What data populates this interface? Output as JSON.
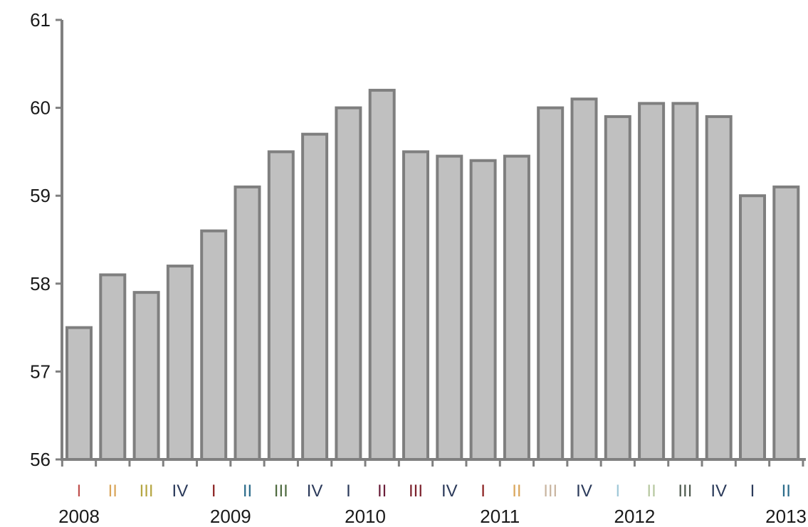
{
  "chart_data": {
    "type": "bar",
    "title": "",
    "xlabel": "",
    "ylabel": "",
    "ylim": [
      56,
      61
    ],
    "yticks": [
      "56",
      "57",
      "58",
      "59",
      "60",
      "61"
    ],
    "grid": false,
    "categories": [
      "I",
      "II",
      "III",
      "IV",
      "I",
      "II",
      "III",
      "IV",
      "I",
      "II",
      "III",
      "IV",
      "I",
      "II",
      "III",
      "IV",
      "I",
      "II",
      "III",
      "IV",
      "I",
      "II"
    ],
    "values": [
      57.5,
      58.1,
      57.9,
      58.2,
      58.6,
      59.1,
      59.5,
      59.7,
      60.0,
      60.2,
      59.5,
      59.45,
      59.4,
      59.45,
      60.0,
      60.1,
      59.9,
      60.05,
      60.05,
      59.9,
      59.0,
      59.1
    ],
    "quarter_label_colors": [
      "#c0504d",
      "#d9a55a",
      "#b5a642",
      "#2b3a5a",
      "#8a1f1f",
      "#2b6b8a",
      "#4f6b3f",
      "#2b3a5a",
      "#2b3a5a",
      "#6b1f3a",
      "#7a1f2a",
      "#2b3a5a",
      "#8a1f1f",
      "#d9a55a",
      "#c9b5a0",
      "#2b3a5a",
      "#a0c8d8",
      "#b7c8a0",
      "#4f5a4f",
      "#2b3a5a",
      "#2b3a5a",
      "#2b6b8a"
    ],
    "years": [
      {
        "label": "2008",
        "first_bar": 0,
        "last_bar": 0
      },
      {
        "label": "2009",
        "first_bar": 4,
        "last_bar": 5
      },
      {
        "label": "2010",
        "first_bar": 8,
        "last_bar": 9
      },
      {
        "label": "2011",
        "first_bar": 12,
        "last_bar": 13
      },
      {
        "label": "2012",
        "first_bar": 16,
        "last_bar": 17
      },
      {
        "label": "2013",
        "first_bar": 21,
        "last_bar": 21
      }
    ],
    "colors": {
      "bar_fill": "#c0c0c0",
      "bar_stroke": "#7f7f7f",
      "axis": "#808080"
    }
  }
}
